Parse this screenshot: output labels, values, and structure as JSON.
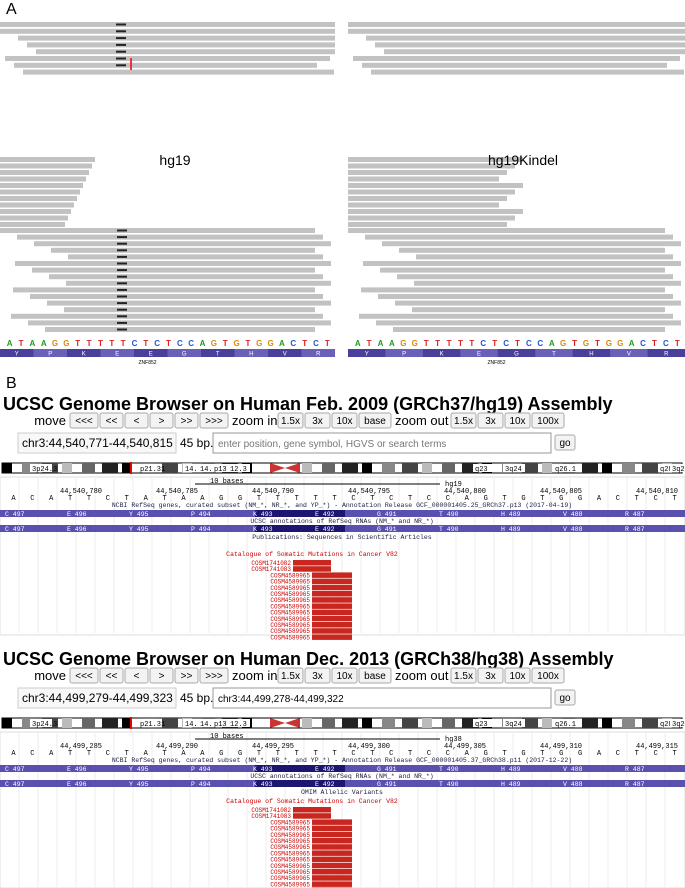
{
  "panel_a": {
    "label": "A",
    "views": [
      {
        "label": "hg19",
        "sequence": [
          "A",
          "T",
          "A",
          "A",
          "G",
          "G",
          "T",
          "T",
          "T",
          "T",
          "T",
          "C",
          "T",
          "C",
          "T",
          "C",
          "C",
          "A",
          "G",
          "T",
          "G",
          "T",
          "G",
          "G",
          "A",
          "C",
          "T",
          "C",
          "T"
        ],
        "amino_acids": [
          "Y",
          "P",
          "K",
          "E",
          "E",
          "G",
          "T",
          "H",
          "V",
          "R"
        ],
        "gene": "ZNF852"
      },
      {
        "label": "hg19Kindel",
        "sequence": [
          "A",
          "T",
          "A",
          "A",
          "G",
          "G",
          "T",
          "T",
          "T",
          "T",
          "T",
          "C",
          "T",
          "C",
          "T",
          "C",
          "C",
          "A",
          "G",
          "T",
          "G",
          "T",
          "G",
          "G",
          "A",
          "C",
          "T",
          "C",
          "T"
        ],
        "amino_acids": [
          "Y",
          "P",
          "K",
          "E",
          "G",
          "T",
          "H",
          "V",
          "R"
        ],
        "gene": "ZNF852"
      }
    ]
  },
  "panel_b": {
    "label": "B",
    "browsers": [
      {
        "title": "UCSC Genome Browser on Human Feb. 2009 (GRCh37/hg19) Assembly",
        "move": "move",
        "nav": [
          "<<<",
          "<<",
          "<",
          ">",
          ">>",
          ">>>"
        ],
        "zoom_in": "zoom in",
        "zoom_in_buttons": [
          "1.5x",
          "3x",
          "10x",
          "base"
        ],
        "zoom_out": "zoom out",
        "zoom_out_buttons": [
          "1.5x",
          "3x",
          "10x",
          "100x"
        ],
        "position": "chr3:44,540,771-44,540,815",
        "bp": "45 bp.",
        "search": "enter position, gene symbol, HGVS or search terms",
        "go": "go",
        "bands": [
          "3p24.3",
          "p21.31",
          "14.2",
          "14.1",
          "p13",
          "12.3",
          "q23",
          "3q24",
          "q26.1",
          "q28",
          "3q29"
        ],
        "scale": "10 bases",
        "assembly": "hg19",
        "coords": [
          "44,540,780",
          "44,540,785",
          "44,540,790",
          "44,540,795",
          "44,540,800",
          "44,540,805",
          "44,540,810"
        ],
        "bases": [
          "A",
          "C",
          "A",
          "T",
          "T",
          "C",
          "T",
          "A",
          "T",
          "A",
          "A",
          "G",
          "G",
          "T",
          "T",
          "T",
          "T",
          "T",
          "C",
          "T",
          "C",
          "T",
          "C",
          "C",
          "A",
          "G",
          "T",
          "G",
          "T",
          "G",
          "G",
          "A",
          "C",
          "T",
          "C",
          "T"
        ],
        "refseq": "NCBI RefSeq genes, curated subset (NM_*, NR_*, and YP_*) - Annotation Release GCF_000001405.25_GRCh37.p13 (2017-04-19)",
        "amino_acids": [
          "C 497",
          "E 496",
          "Y 495",
          "P 494",
          "K 493",
          "E 492",
          "G 491",
          "T 490",
          "H 489",
          "V 488",
          "R 487"
        ],
        "ucsc": "UCSC annotations of RefSeq RNAs (NM_* and NR_*)",
        "extra_track": "Publications: Sequences in Scientific Articles",
        "cosmic_title": "Catalogue of Somatic Mutations in Cancer V82",
        "cosmic_ids": [
          "COSM1741082",
          "COSM1741083",
          "COSM4589965",
          "COSM4589965",
          "COSM4589965",
          "COSM4589965",
          "COSM4589965",
          "COSM4589965",
          "COSM4589965",
          "COSM4589965",
          "COSM4589965",
          "COSM4589965",
          "COSM4589965"
        ]
      },
      {
        "title": "UCSC Genome Browser on Human Dec. 2013 (GRCh38/hg38) Assembly",
        "move": "move",
        "nav": [
          "<<<",
          "<<",
          "<",
          ">",
          ">>",
          ">>>"
        ],
        "zoom_in": "zoom in",
        "zoom_in_buttons": [
          "1.5x",
          "3x",
          "10x",
          "base"
        ],
        "zoom_out": "zoom out",
        "zoom_out_buttons": [
          "1.5x",
          "3x",
          "10x",
          "100x"
        ],
        "position": "chr3:44,499,279-44,499,323",
        "bp": "45 bp.",
        "search": "chr3:44,499,278-44,499,322",
        "go": "go",
        "bands": [
          "3p24.3",
          "p21.31",
          "14.2",
          "14.1",
          "p13",
          "12.3",
          "q23",
          "3q24",
          "q26.1",
          "q28",
          "3q29"
        ],
        "scale": "10 bases",
        "assembly": "hg38",
        "coords": [
          "44,499,285",
          "44,499,290",
          "44,499,295",
          "44,499,300",
          "44,499,305",
          "44,499,310",
          "44,499,315"
        ],
        "bases": [
          "A",
          "C",
          "A",
          "T",
          "T",
          "C",
          "T",
          "A",
          "T",
          "A",
          "A",
          "G",
          "G",
          "T",
          "T",
          "T",
          "T",
          "T",
          "C",
          "T",
          "C",
          "T",
          "C",
          "C",
          "A",
          "G",
          "T",
          "G",
          "T",
          "G",
          "G",
          "A",
          "C",
          "T",
          "C",
          "T"
        ],
        "refseq": "NCBI RefSeq genes, curated subset (NM_*, NR_*, and YP_*) - Annotation Release GCF_000001405.37_GRCh38.p11 (2017-12-22)",
        "amino_acids": [
          "C 497",
          "E 496",
          "Y 495",
          "P 494",
          "K 493",
          "E 492",
          "G 491",
          "T 490",
          "H 489",
          "V 488",
          "R 487"
        ],
        "ucsc": "UCSC annotations of RefSeq RNAs (NM_* and NR_*)",
        "extra_track": "OMIM Allelic Variants",
        "cosmic_title": "Catalogue of Somatic Mutations in Cancer V82",
        "cosmic_ids": [
          "COSM1741082",
          "COSM1741083",
          "COSM4589965",
          "COSM4589965",
          "COSM4589965",
          "COSM4589965",
          "COSM4589965",
          "COSM4589965",
          "COSM4589965",
          "COSM4589965",
          "COSM4589965",
          "COSM4589965",
          "COSM4589965",
          "COSM4589965",
          "COSM4589965"
        ]
      }
    ]
  }
}
